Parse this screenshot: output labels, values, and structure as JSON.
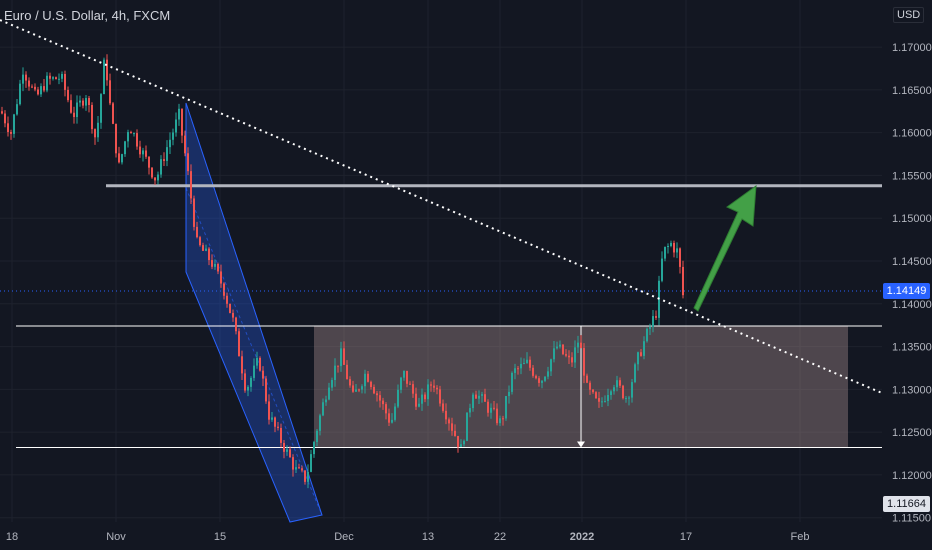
{
  "header": {
    "title": "Euro / U.S. Dollar, 4h, FXCM"
  },
  "currency": "USD",
  "colors": {
    "background": "#131722",
    "up": "#26a69a",
    "down": "#ef5350",
    "grid": "#1e222d",
    "trendline": "#ffffff",
    "resistance": "#b2b5be",
    "range_box": "rgba(188,157,157,0.35)",
    "channel": "rgba(41,98,255,0.30)",
    "arrow": "#43a047",
    "last_price": "#2962ff"
  },
  "chart_data": {
    "type": "candlestick",
    "symbol": "EURUSD",
    "timeframe": "4h",
    "ylim": [
      1.1145,
      1.1755
    ],
    "y_ticks": [
      1.17,
      1.165,
      1.16,
      1.155,
      1.15,
      1.145,
      1.14,
      1.135,
      1.13,
      1.125,
      1.12,
      1.115
    ],
    "x_ticks": [
      "18",
      "Nov",
      "15",
      "Dec",
      "13",
      "22",
      "2022",
      "17",
      "Feb"
    ],
    "last_price": "1.14149",
    "marked_price": "1.11664",
    "levels": {
      "resistance": 1.1538,
      "range_top": 1.1374,
      "range_bottom": 1.1232
    },
    "path": [
      [
        0,
        1.1625
      ],
      [
        10,
        1.16
      ],
      [
        22,
        1.1675
      ],
      [
        35,
        1.164
      ],
      [
        45,
        1.166
      ],
      [
        60,
        1.1665
      ],
      [
        72,
        1.162
      ],
      [
        85,
        1.1645
      ],
      [
        95,
        1.159
      ],
      [
        104,
        1.169
      ],
      [
        110,
        1.162
      ],
      [
        118,
        1.156
      ],
      [
        128,
        1.161
      ],
      [
        140,
        1.158
      ],
      [
        155,
        1.1545
      ],
      [
        165,
        1.158
      ],
      [
        178,
        1.162
      ],
      [
        186,
        1.156
      ],
      [
        196,
        1.147
      ],
      [
        210,
        1.145
      ],
      [
        222,
        1.142
      ],
      [
        232,
        1.138
      ],
      [
        245,
        1.13
      ],
      [
        258,
        1.1335
      ],
      [
        268,
        1.127
      ],
      [
        280,
        1.124
      ],
      [
        295,
        1.1205
      ],
      [
        305,
        1.1195
      ],
      [
        315,
        1.125
      ],
      [
        328,
        1.131
      ],
      [
        340,
        1.134
      ],
      [
        352,
        1.129
      ],
      [
        365,
        1.132
      ],
      [
        378,
        1.129
      ],
      [
        390,
        1.126
      ],
      [
        402,
        1.132
      ],
      [
        418,
        1.128
      ],
      [
        432,
        1.131
      ],
      [
        446,
        1.127
      ],
      [
        460,
        1.123
      ],
      [
        472,
        1.13
      ],
      [
        486,
        1.128
      ],
      [
        500,
        1.126
      ],
      [
        512,
        1.132
      ],
      [
        526,
        1.133
      ],
      [
        540,
        1.131
      ],
      [
        556,
        1.135
      ],
      [
        570,
        1.133
      ],
      [
        578,
        1.136
      ],
      [
        586,
        1.13
      ],
      [
        598,
        1.128
      ],
      [
        612,
        1.131
      ],
      [
        626,
        1.129
      ],
      [
        638,
        1.134
      ],
      [
        648,
        1.137
      ],
      [
        655,
        1.139
      ],
      [
        662,
        1.146
      ],
      [
        670,
        1.147
      ],
      [
        677,
        1.146
      ],
      [
        682,
        1.141
      ]
    ]
  }
}
